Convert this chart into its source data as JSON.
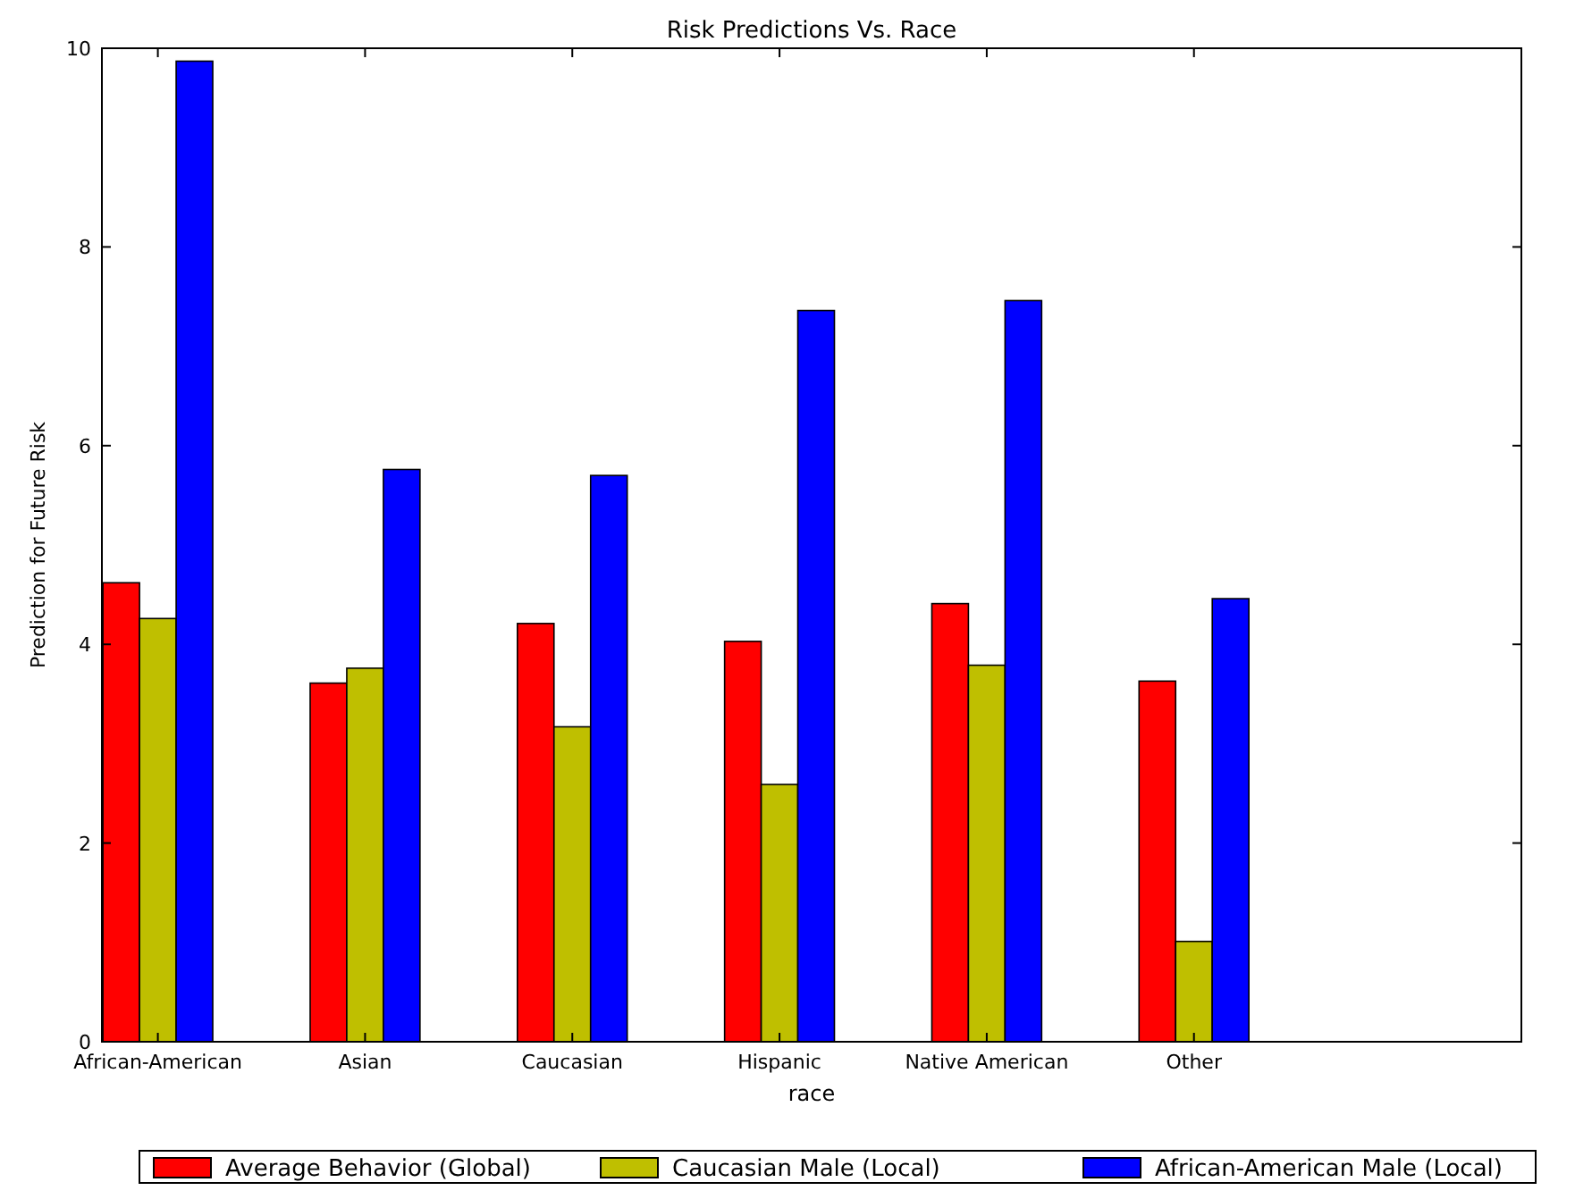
{
  "chart_data": {
    "type": "bar",
    "title": "Risk Predictions Vs. Race",
    "xlabel": "race",
    "ylabel": "Prediction for Future Risk",
    "categories": [
      "African-American",
      "Asian",
      "Caucasian",
      "Hispanic",
      "Native American",
      "Other"
    ],
    "series": [
      {
        "name": "Average Behavior (Global)",
        "color": "#ff0000",
        "values": [
          4.62,
          3.61,
          4.21,
          4.03,
          4.41,
          3.63
        ]
      },
      {
        "name": "Caucasian Male (Local)",
        "color": "#bfbf00",
        "values": [
          4.26,
          3.76,
          3.17,
          2.59,
          3.79,
          1.01
        ]
      },
      {
        "name": "African-American Male (Local)",
        "color": "#0000ff",
        "values": [
          9.87,
          5.76,
          5.7,
          7.36,
          7.46,
          4.46
        ]
      }
    ],
    "ylim": [
      0,
      10
    ],
    "yticks": [
      0,
      2,
      4,
      6,
      8,
      10
    ],
    "grid": false,
    "legend": "bottom"
  }
}
